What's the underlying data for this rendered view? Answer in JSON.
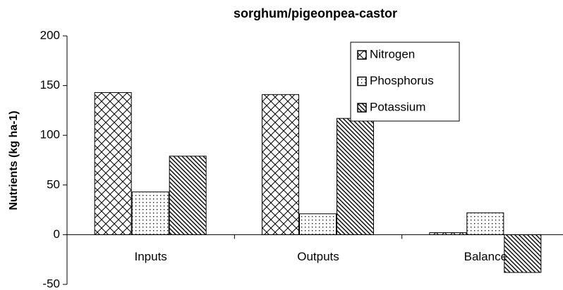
{
  "chart_data": {
    "type": "bar",
    "title": "sorghum/pigeonpea-castor",
    "y_label": "Nutrients (kg ha-1)",
    "categories": [
      "Inputs",
      "Outputs",
      "Balance"
    ],
    "series": [
      {
        "name": "Nitrogen",
        "color": "#000000",
        "pattern": "crosshatch",
        "values": [
          143,
          141,
          2
        ]
      },
      {
        "name": "Phosphorus",
        "color": "#000000",
        "pattern": "dots",
        "values": [
          43,
          21,
          22
        ]
      },
      {
        "name": "Potassium",
        "color": "#000000",
        "pattern": "diagonal",
        "values": [
          79,
          117,
          -38
        ]
      }
    ],
    "ylim": [
      -50,
      200
    ],
    "yticks": [
      -50,
      0,
      50,
      100,
      150,
      200
    ],
    "grid": false,
    "legend": "upper right"
  }
}
